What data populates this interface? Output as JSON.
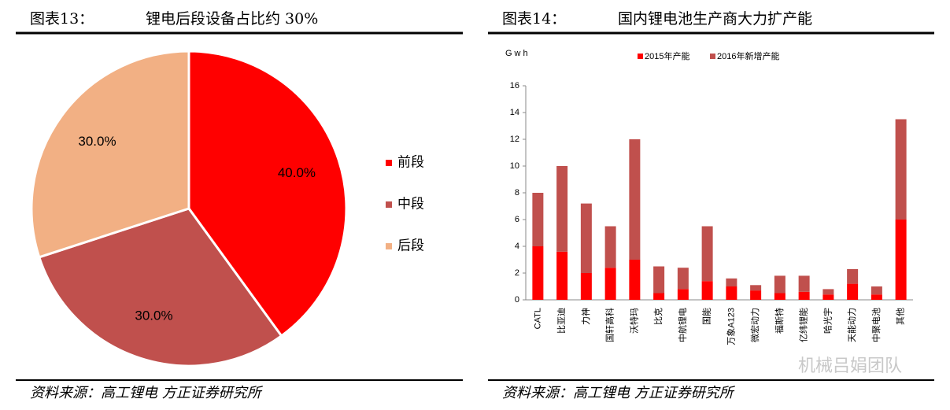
{
  "chart_data": [
    {
      "type": "pie",
      "figure_label": "图表13：",
      "title": "锂电后段设备占比约 30%",
      "categories": [
        "前段",
        "中段",
        "后段"
      ],
      "values": [
        40,
        30,
        30
      ],
      "value_labels": [
        "40.0%",
        "30.0%",
        "30.0%"
      ],
      "colors": [
        "#ff0000",
        "#c0504d",
        "#f2b084"
      ],
      "source": "资料来源：高工锂电  方正证券研究所"
    },
    {
      "type": "bar",
      "figure_label": "图表14：",
      "title": "国内锂电池生产商大力扩产能",
      "y_label": "Gwh",
      "stacked": true,
      "categories": [
        "CATL",
        "比亚迪",
        "力神",
        "国轩高科",
        "沃特玛",
        "比克",
        "中航锂电",
        "国能",
        "万象A123",
        "微宏动力",
        "福斯特",
        "亿纬锂能",
        "哈光宇",
        "天能动力",
        "中聚电池",
        "其他"
      ],
      "series": [
        {
          "name": "2015年产能",
          "color": "#ff0000",
          "values": [
            4,
            3.6,
            2,
            2.4,
            3,
            0.5,
            0.8,
            1.4,
            1,
            0.7,
            0.5,
            0.6,
            0.4,
            1.2,
            0.4,
            6
          ]
        },
        {
          "name": "2016年新增产能",
          "color": "#c0504d",
          "values": [
            4,
            6.4,
            5.2,
            3.1,
            9,
            2,
            1.6,
            4.1,
            0.6,
            0.4,
            1.3,
            1.2,
            0.4,
            1.1,
            0.6,
            7.5
          ]
        }
      ],
      "ylim": [
        0,
        16
      ],
      "yticks": [
        0,
        2,
        4,
        6,
        8,
        10,
        12,
        14,
        16
      ],
      "source": "资料来源：高工锂电  方正证券研究所"
    }
  ],
  "watermark": "机械吕娟团队"
}
